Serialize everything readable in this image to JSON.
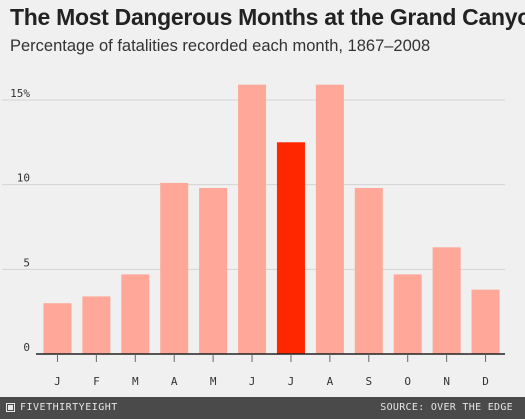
{
  "header": {
    "title": "The Most Dangerous Months at the Grand Canyon",
    "subtitle": "Percentage of fatalities recorded each month, 1867–2008"
  },
  "footer": {
    "brand": "FIVETHIRTYEIGHT",
    "source": "SOURCE: OVER THE EDGE"
  },
  "colors": {
    "bar": "#ffa899",
    "highlight": "#ff2700",
    "grid": "#d4d4d4",
    "baseline": "#222222",
    "background": "#f0f0f0"
  },
  "chart_data": {
    "type": "bar",
    "title": "The Most Dangerous Months at the Grand Canyon",
    "subtitle": "Percentage of fatalities recorded each month, 1867–2008",
    "categories": [
      "J",
      "F",
      "M",
      "A",
      "M",
      "J",
      "J",
      "A",
      "S",
      "O",
      "N",
      "D"
    ],
    "values": [
      3.0,
      3.4,
      4.7,
      10.1,
      9.8,
      15.9,
      12.5,
      15.9,
      9.8,
      4.7,
      6.3,
      3.8
    ],
    "highlight_index": 6,
    "ylim": [
      0,
      16
    ],
    "yticks": [
      {
        "value": 0,
        "label": "0"
      },
      {
        "value": 5,
        "label": "5"
      },
      {
        "value": 10,
        "label": "10"
      },
      {
        "value": 15,
        "label": "15%"
      }
    ],
    "grid": true,
    "xlabel": "",
    "ylabel": ""
  }
}
